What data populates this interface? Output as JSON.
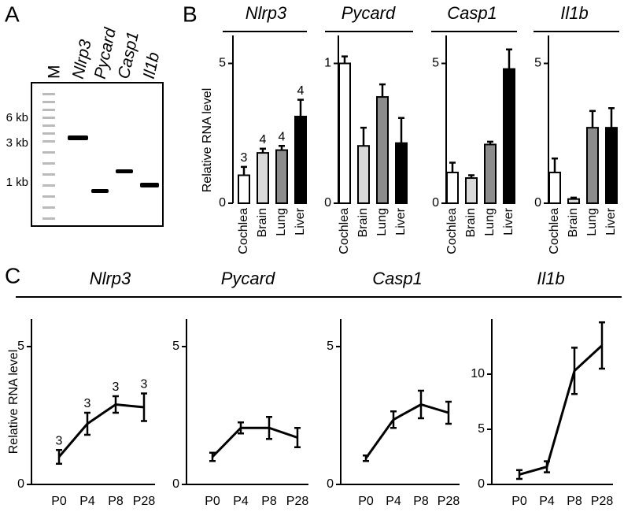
{
  "panels": {
    "a": "A",
    "b": "B",
    "c": "C"
  },
  "gel": {
    "lanes": [
      "M",
      "Nlrp3",
      "Pycard",
      "Casp1",
      "Il1b"
    ],
    "sizes": [
      "6 kb",
      "3 kb",
      "1 kb"
    ]
  },
  "chart_data": [
    {
      "type": "bar",
      "title": "Nlrp3",
      "ylabel": "Relative RNA level",
      "categories": [
        "Cochlea",
        "Brain",
        "Lung",
        "Liver"
      ],
      "values": [
        1.0,
        1.8,
        1.9,
        3.1
      ],
      "errors": [
        0.3,
        0.15,
        0.15,
        0.6
      ],
      "annotations": [
        "3",
        "4",
        "4",
        "4"
      ],
      "colors": [
        "#ffffff",
        "#d9d9d9",
        "#8c8c8c",
        "#000000"
      ],
      "ylim": [
        0,
        6
      ],
      "yticks": [
        0,
        5
      ]
    },
    {
      "type": "bar",
      "title": "Pycard",
      "categories": [
        "Cochlea",
        "Brain",
        "Lung",
        "Liver"
      ],
      "values": [
        1.0,
        0.41,
        0.76,
        0.43
      ],
      "errors": [
        0.05,
        0.13,
        0.09,
        0.18
      ],
      "colors": [
        "#ffffff",
        "#d9d9d9",
        "#8c8c8c",
        "#000000"
      ],
      "ylim": [
        0,
        1.2
      ],
      "yticks": [
        0,
        1
      ]
    },
    {
      "type": "bar",
      "title": "Casp1",
      "categories": [
        "Cochlea",
        "Brain",
        "Lung",
        "Liver"
      ],
      "values": [
        1.1,
        0.9,
        2.1,
        4.8
      ],
      "errors": [
        0.35,
        0.1,
        0.1,
        0.7
      ],
      "colors": [
        "#ffffff",
        "#d9d9d9",
        "#8c8c8c",
        "#000000"
      ],
      "ylim": [
        0,
        6
      ],
      "yticks": [
        0,
        5
      ]
    },
    {
      "type": "bar",
      "title": "Il1b",
      "categories": [
        "Cochlea",
        "Brain",
        "Lung",
        "Liver"
      ],
      "values": [
        1.1,
        0.15,
        2.7,
        2.7
      ],
      "errors": [
        0.5,
        0.05,
        0.6,
        0.7
      ],
      "colors": [
        "#ffffff",
        "#d9d9d9",
        "#8c8c8c",
        "#000000"
      ],
      "ylim": [
        0,
        6
      ],
      "yticks": [
        0,
        5
      ]
    },
    {
      "type": "line",
      "title": "Nlrp3",
      "ylabel": "Relative RNA level",
      "categories": [
        "P0",
        "P4",
        "P8",
        "P28"
      ],
      "values": [
        1.0,
        2.2,
        2.9,
        2.8
      ],
      "errors": [
        0.25,
        0.4,
        0.3,
        0.5
      ],
      "annotations": [
        "3",
        "3",
        "3",
        "3"
      ],
      "color": "#000000",
      "ylim": [
        0,
        6
      ],
      "yticks": [
        0,
        5
      ]
    },
    {
      "type": "line",
      "title": "Pycard",
      "categories": [
        "P0",
        "P4",
        "P8",
        "P28"
      ],
      "values": [
        1.0,
        2.05,
        2.05,
        1.7
      ],
      "errors": [
        0.15,
        0.2,
        0.4,
        0.35
      ],
      "color": "#000000",
      "ylim": [
        0,
        6
      ],
      "yticks": [
        0,
        5
      ]
    },
    {
      "type": "line",
      "title": "Casp1",
      "categories": [
        "P0",
        "P4",
        "P8",
        "P28"
      ],
      "values": [
        0.95,
        2.35,
        2.9,
        2.6
      ],
      "errors": [
        0.1,
        0.3,
        0.5,
        0.4
      ],
      "color": "#000000",
      "ylim": [
        0,
        6
      ],
      "yticks": [
        0,
        5
      ]
    },
    {
      "type": "line",
      "title": "Il1b",
      "categories": [
        "P0",
        "P4",
        "P8",
        "P28"
      ],
      "values": [
        0.9,
        1.6,
        10.3,
        12.6
      ],
      "errors": [
        0.4,
        0.5,
        2.1,
        2.1
      ],
      "color": "#000000",
      "ylim": [
        0,
        15
      ],
      "yticks": [
        0,
        5,
        10
      ]
    }
  ]
}
